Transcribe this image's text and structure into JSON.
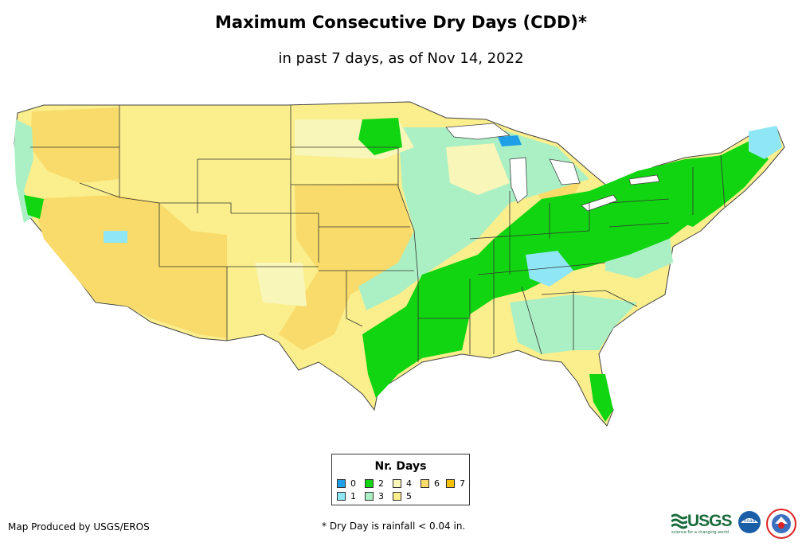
{
  "title": "Maximum Consecutive Dry Days (CDD)*",
  "subtitle": "in past 7 days, as of Nov 14, 2022",
  "legend": {
    "title": "Nr. Days",
    "items": [
      {
        "label": "0",
        "color": "#1fa0e6"
      },
      {
        "label": "1",
        "color": "#8fe6f5"
      },
      {
        "label": "2",
        "color": "#11d511"
      },
      {
        "label": "3",
        "color": "#aaf0c4"
      },
      {
        "label": "4",
        "color": "#f8f6b8"
      },
      {
        "label": "5",
        "color": "#fbee8c"
      },
      {
        "label": "6",
        "color": "#f8db6a"
      },
      {
        "label": "7",
        "color": "#f5c000"
      }
    ]
  },
  "credits": {
    "producer": "Map Produced by USGS/EROS",
    "footnote": "* Dry Day is rainfall < 0.04 in."
  },
  "logos": {
    "usgs": "USGS",
    "usgs_tagline": "science for a changing world",
    "noaa": "noaa"
  }
}
